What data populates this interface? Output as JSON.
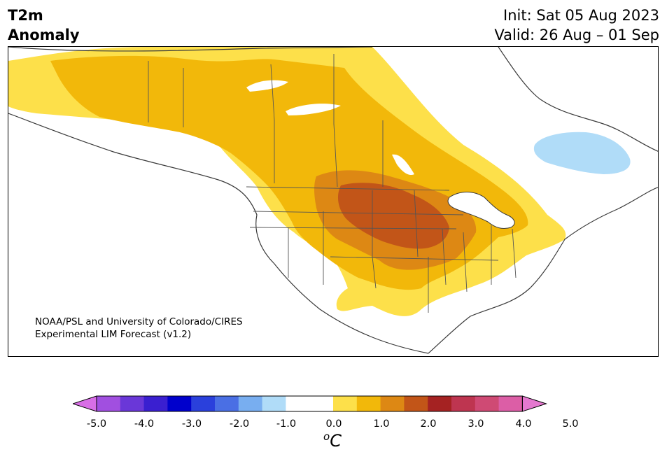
{
  "title": {
    "line1": "T2m",
    "line2": "Anomaly"
  },
  "header_right": {
    "init": "Init: Sat 05 Aug 2023",
    "valid": "Valid: 26 Aug – 01 Sep"
  },
  "credit": {
    "line1": "NOAA/PSL and University of Colorado/CIRES",
    "line2": "Experimental LIM Forecast (v1.2)"
  },
  "colorbar": {
    "unit_base": "C",
    "unit_sup": "o",
    "tick_labels": [
      "-5.0",
      "-4.0",
      "-3.0",
      "-2.0",
      "-1.0",
      "0.0",
      "1.0",
      "2.0",
      "3.0",
      "4.0",
      "5.0"
    ],
    "colors": [
      "#d86ee6",
      "#a14fe0",
      "#6a37d8",
      "#3a1fd0",
      "#0000cc",
      "#2a40dc",
      "#4a6fe4",
      "#78aef0",
      "#b0dcf8",
      "#ffffff",
      "#ffffff",
      "#fde04a",
      "#f2b80a",
      "#dd8814",
      "#c25518",
      "#a52222",
      "#be3550",
      "#cf4a74",
      "#dc5ea6",
      "#e478cf"
    ]
  },
  "map_colors": {
    "light_yellow": "#fde04a",
    "yellow_orange": "#f2b80a",
    "orange": "#dd8814",
    "dark_orange": "#c25518",
    "light_blue": "#b0dcf8",
    "coast": "#3a3a3a"
  }
}
